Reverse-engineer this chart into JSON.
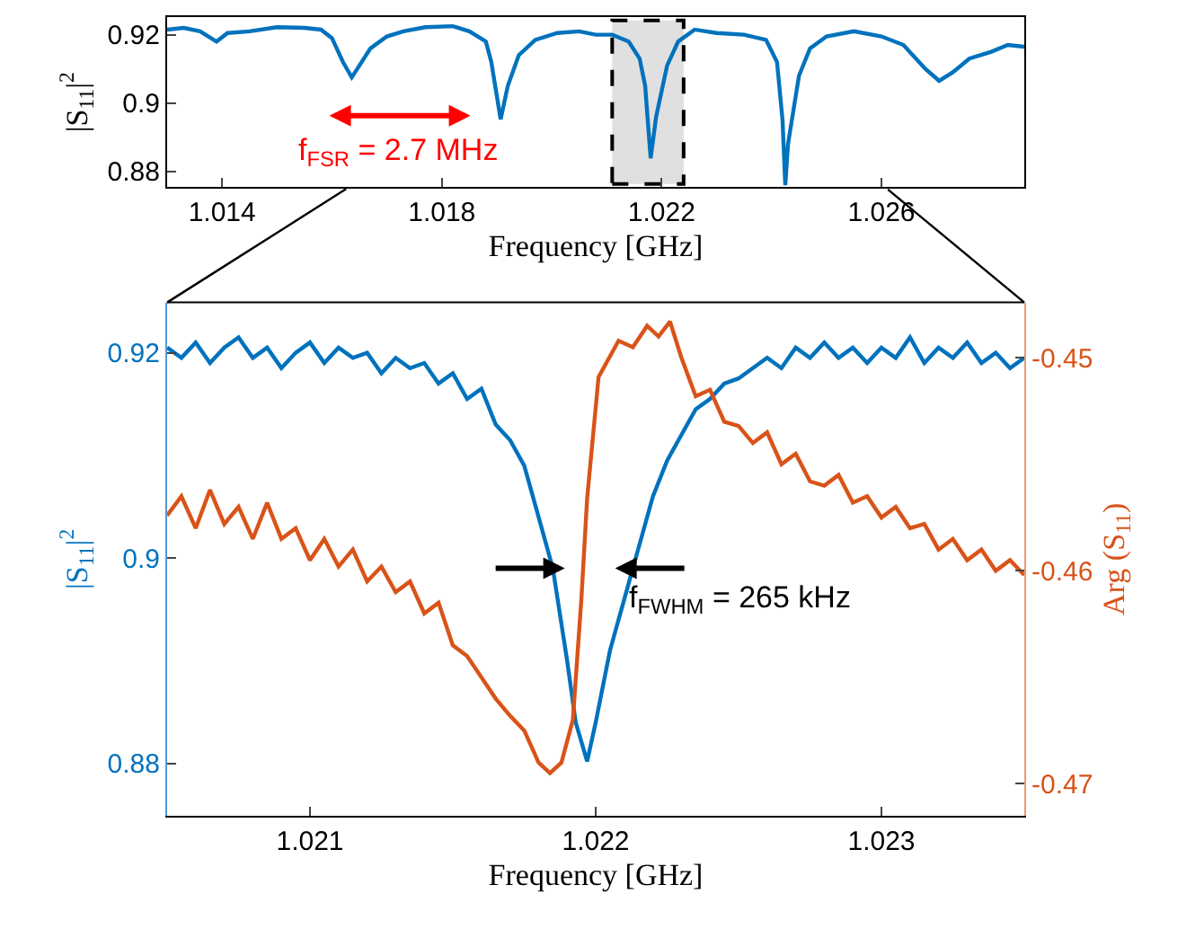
{
  "chart_data": [
    {
      "type": "line",
      "xlabel": "Frequency [GHz]",
      "ylabel": "|S$_{11}$|$^{2}$",
      "xlim": [
        1.013,
        1.0286
      ],
      "xticks": [
        1.014,
        1.018,
        1.022,
        1.026
      ],
      "ylim": [
        0.8753,
        0.9252
      ],
      "yticks": [
        0.88,
        0.9,
        0.92
      ],
      "series": [
        {
          "color": "#0072bd",
          "x": [
            1.013,
            1.0133,
            1.0136,
            1.0139,
            1.0141,
            1.0145,
            1.015,
            1.0155,
            1.0158,
            1.016,
            1.0162,
            1.01636,
            1.0165,
            1.0167,
            1.017,
            1.0173,
            1.0177,
            1.0182,
            1.0185,
            1.0188,
            1.0189,
            1.01907,
            1.0192,
            1.0194,
            1.0197,
            1.0201,
            1.0205,
            1.0208,
            1.0211,
            1.0214,
            1.0216,
            1.0217,
            1.0218,
            1.0219,
            1.0221,
            1.0223,
            1.0226,
            1.023,
            1.0235,
            1.0239,
            1.0241,
            1.0242,
            1.02425,
            1.0243,
            1.0245,
            1.0247,
            1.025,
            1.0255,
            1.026,
            1.0264,
            1.0268,
            1.02705,
            1.0273,
            1.0276,
            1.028,
            1.0283,
            1.0286
          ],
          "values": [
            0.9215,
            0.922,
            0.921,
            0.918,
            0.9205,
            0.921,
            0.9222,
            0.922,
            0.9215,
            0.919,
            0.912,
            0.9075,
            0.911,
            0.916,
            0.9195,
            0.921,
            0.9222,
            0.9225,
            0.921,
            0.918,
            0.912,
            0.8952,
            0.905,
            0.914,
            0.9185,
            0.9205,
            0.921,
            0.92,
            0.92,
            0.918,
            0.913,
            0.905,
            0.8838,
            0.896,
            0.911,
            0.918,
            0.9215,
            0.9205,
            0.92,
            0.9185,
            0.912,
            0.895,
            0.8759,
            0.888,
            0.908,
            0.916,
            0.9195,
            0.921,
            0.9195,
            0.917,
            0.91,
            0.9065,
            0.909,
            0.913,
            0.915,
            0.917,
            0.9165
          ]
        }
      ],
      "bands": [
        {
          "axis": "x",
          "from": 1.0211,
          "to": 1.0224,
          "color": "#e0e0e0"
        }
      ],
      "annotations": [
        "f$_{FSR}$ = 2.7 MHz"
      ]
    },
    {
      "type": "line",
      "xlabel": "Frequency [GHz]",
      "ylabel": "|S$_{11}$|$^{2}$",
      "y2label": "Arg (S$_{11}$)",
      "xlim": [
        1.0205,
        1.0235
      ],
      "xticks": [
        1.021,
        1.022,
        1.023
      ],
      "ylim": [
        0.8749,
        0.9249
      ],
      "yticks": [
        0.88,
        0.9,
        0.92
      ],
      "y2lim": [
        -0.4715,
        -0.4474
      ],
      "y2ticks": [
        -0.47,
        -0.46,
        -0.45
      ],
      "series": [
        {
          "color": "#0072bd",
          "x": [
            1.0205,
            1.02055,
            1.0206,
            1.02065,
            1.0207,
            1.02075,
            1.0208,
            1.02085,
            1.0209,
            1.02095,
            1.021,
            1.02105,
            1.0211,
            1.02115,
            1.0212,
            1.02125,
            1.0213,
            1.02135,
            1.0214,
            1.02145,
            1.0215,
            1.02155,
            1.0216,
            1.02165,
            1.0217,
            1.02175,
            1.0218,
            1.02185,
            1.0219,
            1.02193,
            1.02197,
            1.022,
            1.02205,
            1.0221,
            1.02215,
            1.0222,
            1.02225,
            1.0223,
            1.02235,
            1.0224,
            1.02245,
            1.0225,
            1.02255,
            1.0226,
            1.02265,
            1.0227,
            1.02275,
            1.0228,
            1.02285,
            1.0229,
            1.02295,
            1.023,
            1.02305,
            1.0231,
            1.02315,
            1.0232,
            1.02325,
            1.0233,
            1.02335,
            1.0234,
            1.02345,
            1.0235
          ],
          "values": [
            0.9205,
            0.9195,
            0.921,
            0.919,
            0.9205,
            0.9215,
            0.9195,
            0.9205,
            0.9185,
            0.92,
            0.921,
            0.919,
            0.9205,
            0.9195,
            0.92,
            0.918,
            0.9195,
            0.9185,
            0.919,
            0.917,
            0.918,
            0.9155,
            0.9165,
            0.913,
            0.9115,
            0.909,
            0.904,
            0.899,
            0.89,
            0.884,
            0.8802,
            0.884,
            0.891,
            0.896,
            0.901,
            0.906,
            0.9095,
            0.912,
            0.9145,
            0.9155,
            0.917,
            0.9175,
            0.9185,
            0.9195,
            0.9185,
            0.9205,
            0.9195,
            0.921,
            0.9195,
            0.9205,
            0.919,
            0.9205,
            0.9195,
            0.9215,
            0.919,
            0.9205,
            0.9195,
            0.921,
            0.919,
            0.92,
            0.9185,
            0.9195
          ]
        },
        {
          "color": "#d95319",
          "axis": "y2",
          "x": [
            1.0205,
            1.02055,
            1.0206,
            1.02065,
            1.0207,
            1.02075,
            1.0208,
            1.02085,
            1.0209,
            1.02095,
            1.021,
            1.02105,
            1.0211,
            1.02115,
            1.0212,
            1.02125,
            1.0213,
            1.02135,
            1.0214,
            1.02145,
            1.0215,
            1.02155,
            1.0216,
            1.02165,
            1.0217,
            1.02175,
            1.0218,
            1.02184,
            1.02188,
            1.02192,
            1.02195,
            1.02197,
            1.02201,
            1.02208,
            1.02213,
            1.02218,
            1.02222,
            1.02226,
            1.0223,
            1.02235,
            1.0224,
            1.02245,
            1.0225,
            1.02255,
            1.0226,
            1.02265,
            1.0227,
            1.02275,
            1.0228,
            1.02285,
            1.0229,
            1.02295,
            1.023,
            1.02305,
            1.0231,
            1.02315,
            1.0232,
            1.02325,
            1.0233,
            1.02335,
            1.0234,
            1.02345,
            1.0235
          ],
          "values": [
            -0.4574,
            -0.4565,
            -0.458,
            -0.4562,
            -0.4578,
            -0.457,
            -0.4585,
            -0.4568,
            -0.4585,
            -0.458,
            -0.4595,
            -0.4585,
            -0.4598,
            -0.459,
            -0.4605,
            -0.4598,
            -0.461,
            -0.4605,
            -0.462,
            -0.4615,
            -0.4635,
            -0.464,
            -0.465,
            -0.466,
            -0.4668,
            -0.4675,
            -0.469,
            -0.4695,
            -0.469,
            -0.467,
            -0.4613,
            -0.4566,
            -0.4509,
            -0.4492,
            -0.4495,
            -0.4485,
            -0.449,
            -0.4483,
            -0.45,
            -0.4518,
            -0.4515,
            -0.453,
            -0.4532,
            -0.454,
            -0.4535,
            -0.455,
            -0.4545,
            -0.4558,
            -0.456,
            -0.4555,
            -0.4568,
            -0.4565,
            -0.4575,
            -0.457,
            -0.458,
            -0.4578,
            -0.459,
            -0.4585,
            -0.4595,
            -0.459,
            -0.46,
            -0.4595,
            -0.4602
          ]
        }
      ],
      "annotations": [
        {
          "text": "f$_{FWHM}$ = 265 kHz",
          "x": 1.02198,
          "y": 0.899
        }
      ]
    }
  ]
}
